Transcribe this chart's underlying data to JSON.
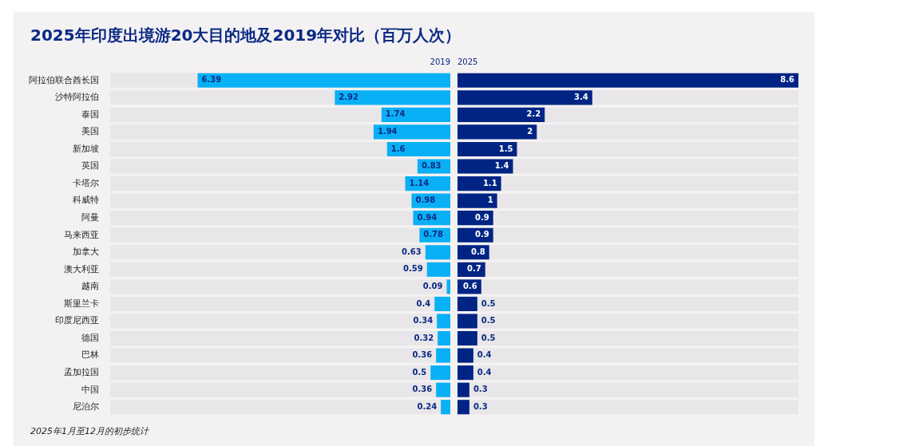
{
  "chart_data": [
    {
      "type": "bar",
      "orientation": "horizontal",
      "title": "2025年印度出境游20大目的地及2019年对比（百万人次）",
      "categories": [
        "阿拉伯联合酋长国",
        "沙特阿拉伯",
        "泰国",
        "美国",
        "新加坡",
        "英国",
        "卡塔尔",
        "科威特",
        "阿曼",
        "马来西亚",
        "加拿大",
        "澳大利亚",
        "越南",
        "斯里兰卡",
        "印度尼西亚",
        "德国",
        "巴林",
        "孟加拉国",
        "中国",
        "尼泊尔"
      ],
      "series": [
        {
          "name": "2019",
          "color": "#0ab0f5",
          "values": [
            6.39,
            2.92,
            1.74,
            1.94,
            1.6,
            0.83,
            1.14,
            0.98,
            0.94,
            0.78,
            0.63,
            0.59,
            0.09,
            0.4,
            0.34,
            0.32,
            0.36,
            0.5,
            0.36,
            0.24
          ]
        }
      ],
      "xlim": [
        8.6,
        0
      ],
      "data_labels": true,
      "legend": false,
      "annotations": [
        "2025年1月至12月的初步统计"
      ]
    },
    {
      "type": "bar",
      "orientation": "horizontal",
      "categories": [
        null,
        null,
        null,
        null,
        null,
        null,
        null,
        null,
        null,
        null,
        null,
        null,
        null,
        null,
        null,
        null,
        null,
        null,
        null,
        null
      ],
      "series": [
        {
          "name": "2025",
          "color": "#002484",
          "values": [
            8.6,
            3.4,
            2.2,
            2,
            1.5,
            1.4,
            1.1,
            1,
            0.9,
            0.9,
            0.8,
            0.7,
            0.6,
            0.5,
            0.5,
            0.5,
            0.4,
            0.4,
            0.3,
            0.3
          ]
        }
      ],
      "xlim": [
        0,
        8.6
      ],
      "tick_labels": false,
      "data_labels": true,
      "legend": false
    }
  ]
}
